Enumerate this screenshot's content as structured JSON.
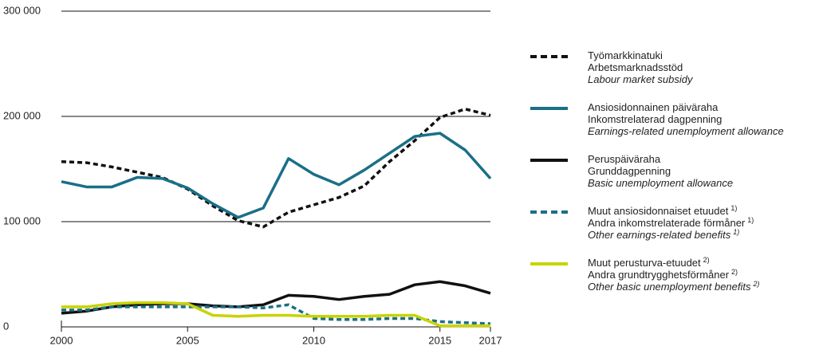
{
  "chart_data": {
    "type": "line",
    "x": [
      2000,
      2001,
      2002,
      2003,
      2004,
      2005,
      2006,
      2007,
      2008,
      2009,
      2010,
      2011,
      2012,
      2013,
      2014,
      2015,
      2016,
      2017
    ],
    "xlim": [
      2000,
      2017
    ],
    "xticks": [
      2000,
      2005,
      2010,
      2015,
      2017
    ],
    "ylim": [
      0,
      300000
    ],
    "yticks": [
      0,
      {
        "value": 100000,
        "label": "100 000"
      },
      {
        "value": 200000,
        "label": "200 000"
      },
      {
        "value": 300000,
        "label": "300 000"
      }
    ],
    "grid": true,
    "series": [
      {
        "name": [
          "Työmarkkinatuki",
          "Arbetsmarknadsstöd",
          "Labour market subsidy"
        ],
        "color": "#111111",
        "dash": true,
        "values": [
          157000,
          156000,
          152000,
          147000,
          142000,
          131000,
          115000,
          101000,
          95000,
          109000,
          116000,
          123000,
          134000,
          157000,
          177000,
          199000,
          207000,
          201000
        ]
      },
      {
        "name": [
          "Ansiosidonnainen päiväraha",
          "Inkomstrelaterad dagpenning",
          "Earnings-related unemployment allowance"
        ],
        "color": "#1a6f87",
        "dash": false,
        "values": [
          138000,
          133000,
          133000,
          142000,
          141000,
          132000,
          117000,
          104000,
          113000,
          160000,
          145000,
          135000,
          149000,
          165000,
          181000,
          184000,
          168000,
          141000
        ]
      },
      {
        "name": [
          "Peruspäiväraha",
          "Grunddagpenning",
          "Basic unemployment allowance"
        ],
        "color": "#111111",
        "dash": false,
        "values": [
          13000,
          15000,
          19000,
          21000,
          22000,
          22000,
          20000,
          19000,
          21000,
          30000,
          29000,
          26000,
          29000,
          31000,
          40000,
          43000,
          39000,
          32000
        ]
      },
      {
        "name": [
          "Muut ansiosidonnaiset etuudet",
          "Andra inkomstrelaterade förmåner",
          "Other earnings-related benefits"
        ],
        "note": "1)",
        "color": "#1a6f87",
        "dash": true,
        "values": [
          16000,
          16000,
          19000,
          19000,
          19000,
          19000,
          19000,
          19000,
          18000,
          21000,
          8000,
          7000,
          7000,
          8000,
          8000,
          5000,
          4000,
          3000
        ]
      },
      {
        "name": [
          "Muut perusturva-etuudet",
          "Andra grundtrygghetsförmåner",
          "Other basic unemployment benefits"
        ],
        "note": "2)",
        "color": "#c8d400",
        "dash": false,
        "values": [
          19000,
          19000,
          22000,
          23000,
          23000,
          22000,
          11000,
          10000,
          11000,
          11000,
          10000,
          10000,
          10000,
          11000,
          11000,
          1000,
          1000,
          1000
        ]
      }
    ]
  }
}
